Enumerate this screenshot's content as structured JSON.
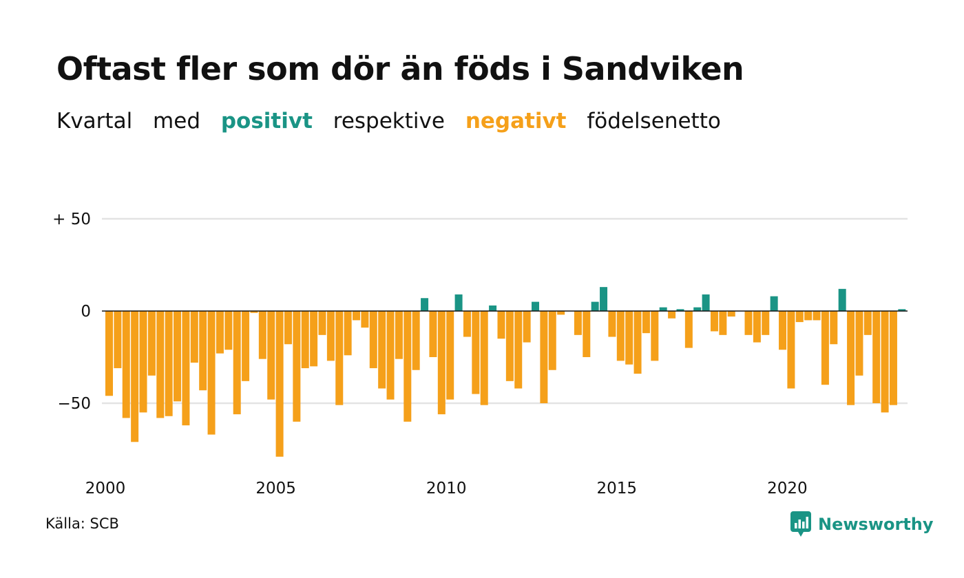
{
  "title": "Oftast fler som dör än föds i Sandviken",
  "subtitle": {
    "w1": "Kvartal",
    "w2": "med",
    "positive_word": "positivt",
    "w3": "respektive",
    "negative_word": "negativt",
    "w4": "födelsenetto"
  },
  "colors": {
    "positive": "#1a9485",
    "negative": "#f5a01a",
    "gridline": "#e3e3e3",
    "baseline": "#111111",
    "text": "#111111"
  },
  "source": "Källa: SCB",
  "brand": {
    "name": "Newsworthy",
    "icon": "newsworthy-bar-chart-logo"
  },
  "chart_data": {
    "type": "bar",
    "title": "Oftast fler som dör än föds i Sandviken",
    "start_year": 2000,
    "periods_per_year": 4,
    "x_tick_labels": [
      "2000",
      "2005",
      "2010",
      "2015",
      "2020"
    ],
    "y_tick_labels": [
      {
        "value": 50,
        "label": "+ 50"
      },
      {
        "value": 0,
        "label": "0"
      },
      {
        "value": -50,
        "label": "−50"
      }
    ],
    "ylim": [
      -80,
      50
    ],
    "grid": true,
    "values": [
      -46,
      -31,
      -58,
      -71,
      -55,
      -35,
      -58,
      -57,
      -49,
      -62,
      -28,
      -43,
      -67,
      -23,
      -21,
      -56,
      -38,
      -1,
      -26,
      -48,
      -79,
      -18,
      -60,
      -31,
      -30,
      -13,
      -27,
      -51,
      -24,
      -5,
      -9,
      -31,
      -42,
      -48,
      -26,
      -60,
      -32,
      7,
      -25,
      -56,
      -48,
      9,
      -14,
      -45,
      -51,
      3,
      -15,
      -38,
      -42,
      -17,
      5,
      -50,
      -32,
      -2,
      0,
      -13,
      -25,
      5,
      13,
      -14,
      -27,
      -29,
      -34,
      -12,
      -27,
      2,
      -4,
      1,
      -20,
      2,
      9,
      -11,
      -13,
      -3,
      0,
      -13,
      -17,
      -13,
      8,
      -21,
      -42,
      -6,
      -5,
      -5,
      -40,
      -18,
      12,
      -51,
      -35,
      -13,
      -50,
      -55,
      -51,
      1
    ]
  }
}
